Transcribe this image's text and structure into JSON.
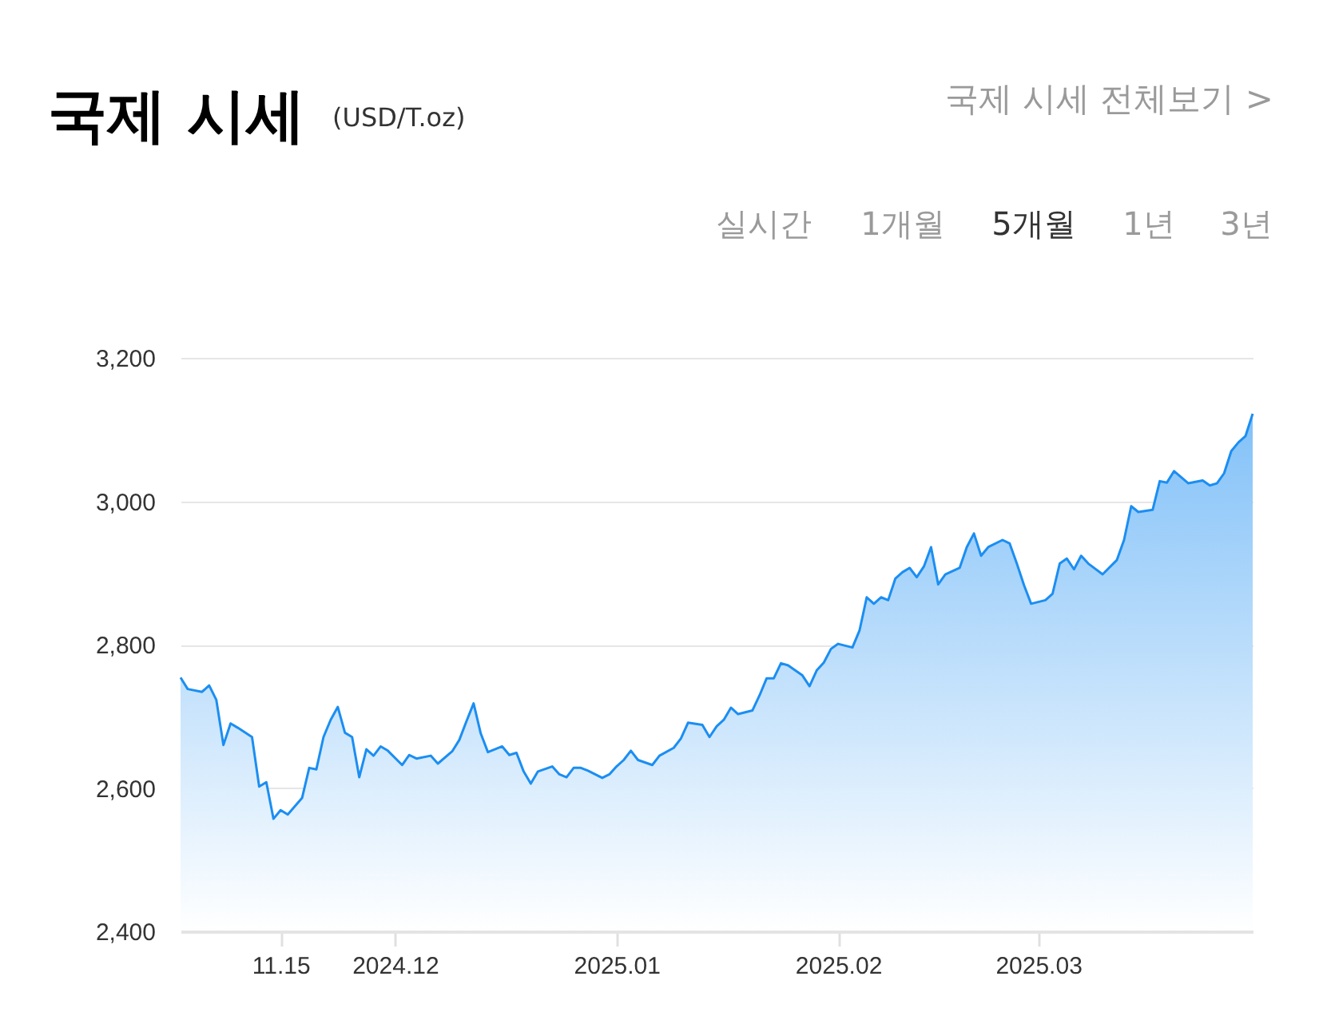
{
  "chart_data": {
    "type": "area",
    "title": "국제 시세",
    "subtitle": "(USD/T.oz)",
    "annotations": [
      "국제 시세 전체보기 >",
      "실시간",
      "1개월",
      "5개월",
      "1년",
      "3년"
    ],
    "x": [
      "2024-11-01",
      "2024-11-02",
      "2024-11-04",
      "2024-11-05",
      "2024-11-06",
      "2024-11-07",
      "2024-11-08",
      "2024-11-09",
      "2024-11-11",
      "2024-11-12",
      "2024-11-13",
      "2024-11-14",
      "2024-11-15",
      "2024-11-16",
      "2024-11-18",
      "2024-11-19",
      "2024-11-20",
      "2024-11-21",
      "2024-11-22",
      "2024-11-23",
      "2024-11-24",
      "2024-11-25",
      "2024-11-26",
      "2024-11-27",
      "2024-11-28",
      "2024-11-29",
      "2024-11-30",
      "2024-12-02",
      "2024-12-03",
      "2024-12-04",
      "2024-12-06",
      "2024-12-07",
      "2024-12-09",
      "2024-12-10",
      "2024-12-11",
      "2024-12-12",
      "2024-12-13",
      "2024-12-14",
      "2024-12-16",
      "2024-12-17",
      "2024-12-18",
      "2024-12-19",
      "2024-12-20",
      "2024-12-21",
      "2024-12-23",
      "2024-12-24",
      "2024-12-25",
      "2024-12-26",
      "2024-12-27",
      "2024-12-28",
      "2024-12-30",
      "2024-12-31",
      "2025-01-01",
      "2025-01-02",
      "2025-01-03",
      "2025-01-04",
      "2025-01-06",
      "2025-01-07",
      "2025-01-09",
      "2025-01-10",
      "2025-01-11",
      "2025-01-13",
      "2025-01-14",
      "2025-01-15",
      "2025-01-16",
      "2025-01-17",
      "2025-01-18",
      "2025-01-20",
      "2025-01-21",
      "2025-01-22",
      "2025-01-23",
      "2025-01-24",
      "2025-01-25",
      "2025-01-27",
      "2025-01-28",
      "2025-01-29",
      "2025-01-30",
      "2025-01-31",
      "2025-02-01",
      "2025-02-03",
      "2025-02-04",
      "2025-02-05",
      "2025-02-06",
      "2025-02-07",
      "2025-02-08",
      "2025-02-09",
      "2025-02-10",
      "2025-02-11",
      "2025-02-12",
      "2025-02-13",
      "2025-02-14",
      "2025-02-15",
      "2025-02-16",
      "2025-02-18",
      "2025-02-19",
      "2025-02-20",
      "2025-02-21",
      "2025-02-22",
      "2025-02-24",
      "2025-02-25",
      "2025-02-26",
      "2025-02-27",
      "2025-02-28",
      "2025-03-02",
      "2025-03-03",
      "2025-03-04",
      "2025-03-05",
      "2025-03-06",
      "2025-03-07",
      "2025-03-08",
      "2025-03-10",
      "2025-03-12",
      "2025-03-13",
      "2025-03-14",
      "2025-03-15",
      "2025-03-17",
      "2025-03-18",
      "2025-03-19",
      "2025-03-20",
      "2025-03-22",
      "2025-03-24",
      "2025-03-25",
      "2025-03-26",
      "2025-03-27",
      "2025-03-28",
      "2025-03-29",
      "2025-03-30",
      "2025-03-31"
    ],
    "values": [
      2754,
      2738,
      2734,
      2743,
      2723,
      2660,
      2690,
      2684,
      2671,
      2602,
      2608,
      2557,
      2569,
      2563,
      2586,
      2628,
      2626,
      2671,
      2695,
      2713,
      2677,
      2671,
      2615,
      2654,
      2645,
      2658,
      2652,
      2632,
      2646,
      2641,
      2645,
      2634,
      2651,
      2667,
      2693,
      2718,
      2676,
      2650,
      2658,
      2646,
      2649,
      2623,
      2606,
      2623,
      2630,
      2619,
      2615,
      2628,
      2628,
      2624,
      2614,
      2619,
      2630,
      2639,
      2652,
      2639,
      2632,
      2645,
      2656,
      2669,
      2691,
      2688,
      2671,
      2686,
      2695,
      2712,
      2703,
      2708,
      2729,
      2753,
      2753,
      2774,
      2771,
      2757,
      2742,
      2764,
      2775,
      2794,
      2801,
      2796,
      2820,
      2866,
      2857,
      2866,
      2862,
      2892,
      2901,
      2907,
      2894,
      2909,
      2936,
      2884,
      2898,
      2907,
      2936,
      2955,
      2924,
      2936,
      2946,
      2941,
      2913,
      2883,
      2857,
      2862,
      2871,
      2913,
      2920,
      2905,
      2924,
      2913,
      2898,
      2918,
      2946,
      2993,
      2985,
      2988,
      3028,
      3026,
      3042,
      3025,
      3029,
      3022,
      3025,
      3039,
      3070,
      3082,
      3091,
      3122
    ],
    "color": "#1b8ef2",
    "xlim": [
      "2024-11-01",
      "2025-03-31"
    ],
    "xticks": [
      {
        "value": "2024-11-15",
        "label": "11.15"
      },
      {
        "value": "2024-12-01",
        "label": "2024.12"
      },
      {
        "value": "2025-01-01",
        "label": "2025.01"
      },
      {
        "value": "2025-02-01",
        "label": "2025.02"
      },
      {
        "value": "2025-03-01",
        "label": "2025.03"
      }
    ],
    "ylim": [
      2400,
      3200
    ],
    "yticks": [
      {
        "value": 2400,
        "label": "2,400"
      },
      {
        "value": 2600,
        "label": "2,600"
      },
      {
        "value": 2800,
        "label": "2,800"
      },
      {
        "value": 3000,
        "label": "3,000"
      },
      {
        "value": 3200,
        "label": "3,200"
      }
    ],
    "grid": "y"
  }
}
